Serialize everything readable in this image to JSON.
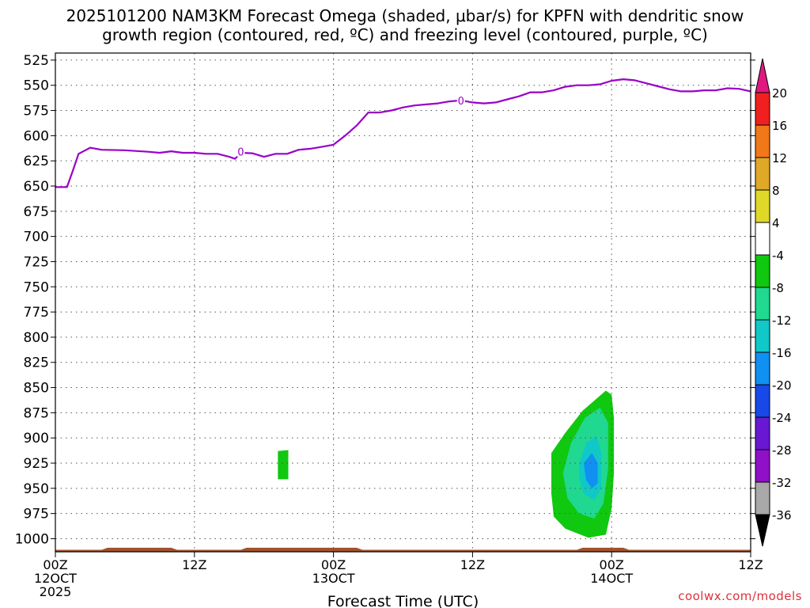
{
  "chart_data": {
    "type": "heatmap",
    "title": "2025101200 NAM3KM Forecast Omega (shaded, μbar/s) for KPFN with dendritic snow",
    "subtitle": "growth region (contoured, red, ºC) and freezing level (contoured, purple, ºC)",
    "xlabel": "Forecast Time (UTC)",
    "ylabel": "",
    "x_ticks": [
      {
        "hour": 0,
        "label": "00Z",
        "sub": "12OCT",
        "sub2": "2025"
      },
      {
        "hour": 12,
        "label": "12Z",
        "sub": "",
        "sub2": ""
      },
      {
        "hour": 24,
        "label": "00Z",
        "sub": "13OCT",
        "sub2": ""
      },
      {
        "hour": 36,
        "label": "12Z",
        "sub": "",
        "sub2": ""
      },
      {
        "hour": 48,
        "label": "00Z",
        "sub": "14OCT",
        "sub2": ""
      },
      {
        "hour": 60,
        "label": "12Z",
        "sub": "",
        "sub2": ""
      }
    ],
    "xlim_hours": [
      0,
      60
    ],
    "y_ticks": [
      "525",
      "550",
      "575",
      "600",
      "625",
      "650",
      "675",
      "700",
      "725",
      "750",
      "775",
      "800",
      "825",
      "850",
      "875",
      "900",
      "925",
      "950",
      "975",
      "1000"
    ],
    "ylim_hpa": [
      1013,
      518
    ],
    "grid": true,
    "freezing_level": {
      "color": "#9a00c8",
      "contour_label": "0",
      "label_points": [
        [
          16.0,
          616
        ],
        [
          35.0,
          565
        ]
      ],
      "points": [
        [
          0,
          651
        ],
        [
          1,
          651
        ],
        [
          1.5,
          635
        ],
        [
          2,
          618
        ],
        [
          3,
          612
        ],
        [
          4,
          614
        ],
        [
          6,
          614.5
        ],
        [
          8,
          616
        ],
        [
          9,
          617
        ],
        [
          10,
          615.5
        ],
        [
          11,
          617
        ],
        [
          12,
          617
        ],
        [
          13,
          618
        ],
        [
          14,
          618
        ],
        [
          15,
          621
        ],
        [
          15.5,
          623
        ],
        [
          16,
          617
        ],
        [
          17,
          617.5
        ],
        [
          18,
          621
        ],
        [
          19,
          618
        ],
        [
          20,
          618
        ],
        [
          21,
          614
        ],
        [
          22,
          613
        ],
        [
          23,
          611
        ],
        [
          24,
          609
        ],
        [
          25,
          600
        ],
        [
          26,
          590
        ],
        [
          27,
          577
        ],
        [
          28,
          577
        ],
        [
          29,
          575
        ],
        [
          30,
          572
        ],
        [
          31,
          570
        ],
        [
          32,
          569
        ],
        [
          33,
          568
        ],
        [
          34,
          566
        ],
        [
          35,
          565
        ],
        [
          36,
          567
        ],
        [
          37,
          568
        ],
        [
          38,
          567
        ],
        [
          39,
          564
        ],
        [
          40,
          561
        ],
        [
          41,
          557
        ],
        [
          42,
          557
        ],
        [
          43,
          555
        ],
        [
          44,
          551.5
        ],
        [
          45,
          550
        ],
        [
          46,
          550
        ],
        [
          47,
          549
        ],
        [
          48,
          545.5
        ],
        [
          49,
          544
        ],
        [
          50,
          545
        ],
        [
          51,
          548
        ],
        [
          52,
          551
        ],
        [
          53,
          554
        ],
        [
          54,
          556
        ],
        [
          55,
          556
        ],
        [
          56,
          555
        ],
        [
          57,
          555
        ],
        [
          58,
          553
        ],
        [
          59,
          553.5
        ],
        [
          60,
          556
        ]
      ]
    },
    "omega_shading": {
      "colorbar_labels": [
        "20",
        "16",
        "12",
        "8",
        "4",
        "-4",
        "-8",
        "-12",
        "-16",
        "-20",
        "-24",
        "-28",
        "-32",
        "-36"
      ],
      "colorbar_colors": [
        "#f02020",
        "#f07818",
        "#e0a828",
        "#e0d828",
        "#ffffff",
        "#10c810",
        "#20d890",
        "#10c8c8",
        "#1090f0",
        "#1848e8",
        "#6818d0",
        "#9010c8",
        "#a8a8a8"
      ],
      "colorbar_top_color": "#e01880",
      "colorbar_bottom_color": "#000000",
      "regions": [
        {
          "color": "#10c810",
          "points": [
            [
              19.2,
              913
            ],
            [
              20.1,
              912
            ],
            [
              20.1,
              941
            ],
            [
              19.2,
              941
            ]
          ]
        },
        {
          "color": "#10c810",
          "points": [
            [
              42.8,
              915
            ],
            [
              44,
              895
            ],
            [
              45.5,
              873
            ],
            [
              47.5,
              853
            ],
            [
              48,
              857
            ],
            [
              48.2,
              880
            ],
            [
              48.2,
              935
            ],
            [
              48,
              970
            ],
            [
              47.5,
              996
            ],
            [
              46,
              999
            ],
            [
              44,
              990
            ],
            [
              43,
              978
            ],
            [
              42.8,
              955
            ]
          ]
        },
        {
          "color": "#20d890",
          "points": [
            [
              43.8,
              935
            ],
            [
              44.5,
              905
            ],
            [
              45.7,
              880
            ],
            [
              47,
              870
            ],
            [
              47.7,
              885
            ],
            [
              47.7,
              930
            ],
            [
              47.3,
              965
            ],
            [
              46.5,
              980
            ],
            [
              45.2,
              975
            ],
            [
              44.2,
              960
            ]
          ]
        },
        {
          "color": "#10c8c8",
          "points": [
            [
              45.2,
              925
            ],
            [
              45.8,
              905
            ],
            [
              46.7,
              898
            ],
            [
              47.1,
              915
            ],
            [
              47.1,
              950
            ],
            [
              46.5,
              962
            ],
            [
              45.6,
              955
            ],
            [
              45.2,
              940
            ]
          ]
        },
        {
          "color": "#1090f0",
          "points": [
            [
              45.6,
              925
            ],
            [
              46.3,
              915
            ],
            [
              46.8,
              925
            ],
            [
              46.8,
              945
            ],
            [
              46.3,
              950
            ],
            [
              45.8,
              942
            ]
          ]
        }
      ]
    },
    "terrain": {
      "color": "#a0522d",
      "points": [
        [
          0,
          1011
        ],
        [
          4,
          1011
        ],
        [
          4.5,
          1009
        ],
        [
          10,
          1009
        ],
        [
          10.5,
          1011
        ],
        [
          16,
          1011
        ],
        [
          16.5,
          1009
        ],
        [
          26,
          1009
        ],
        [
          26.5,
          1011
        ],
        [
          45,
          1011
        ],
        [
          45.5,
          1009
        ],
        [
          49,
          1009
        ],
        [
          49.5,
          1011
        ],
        [
          60,
          1011
        ]
      ]
    }
  },
  "credit": "coolwx.com/models"
}
